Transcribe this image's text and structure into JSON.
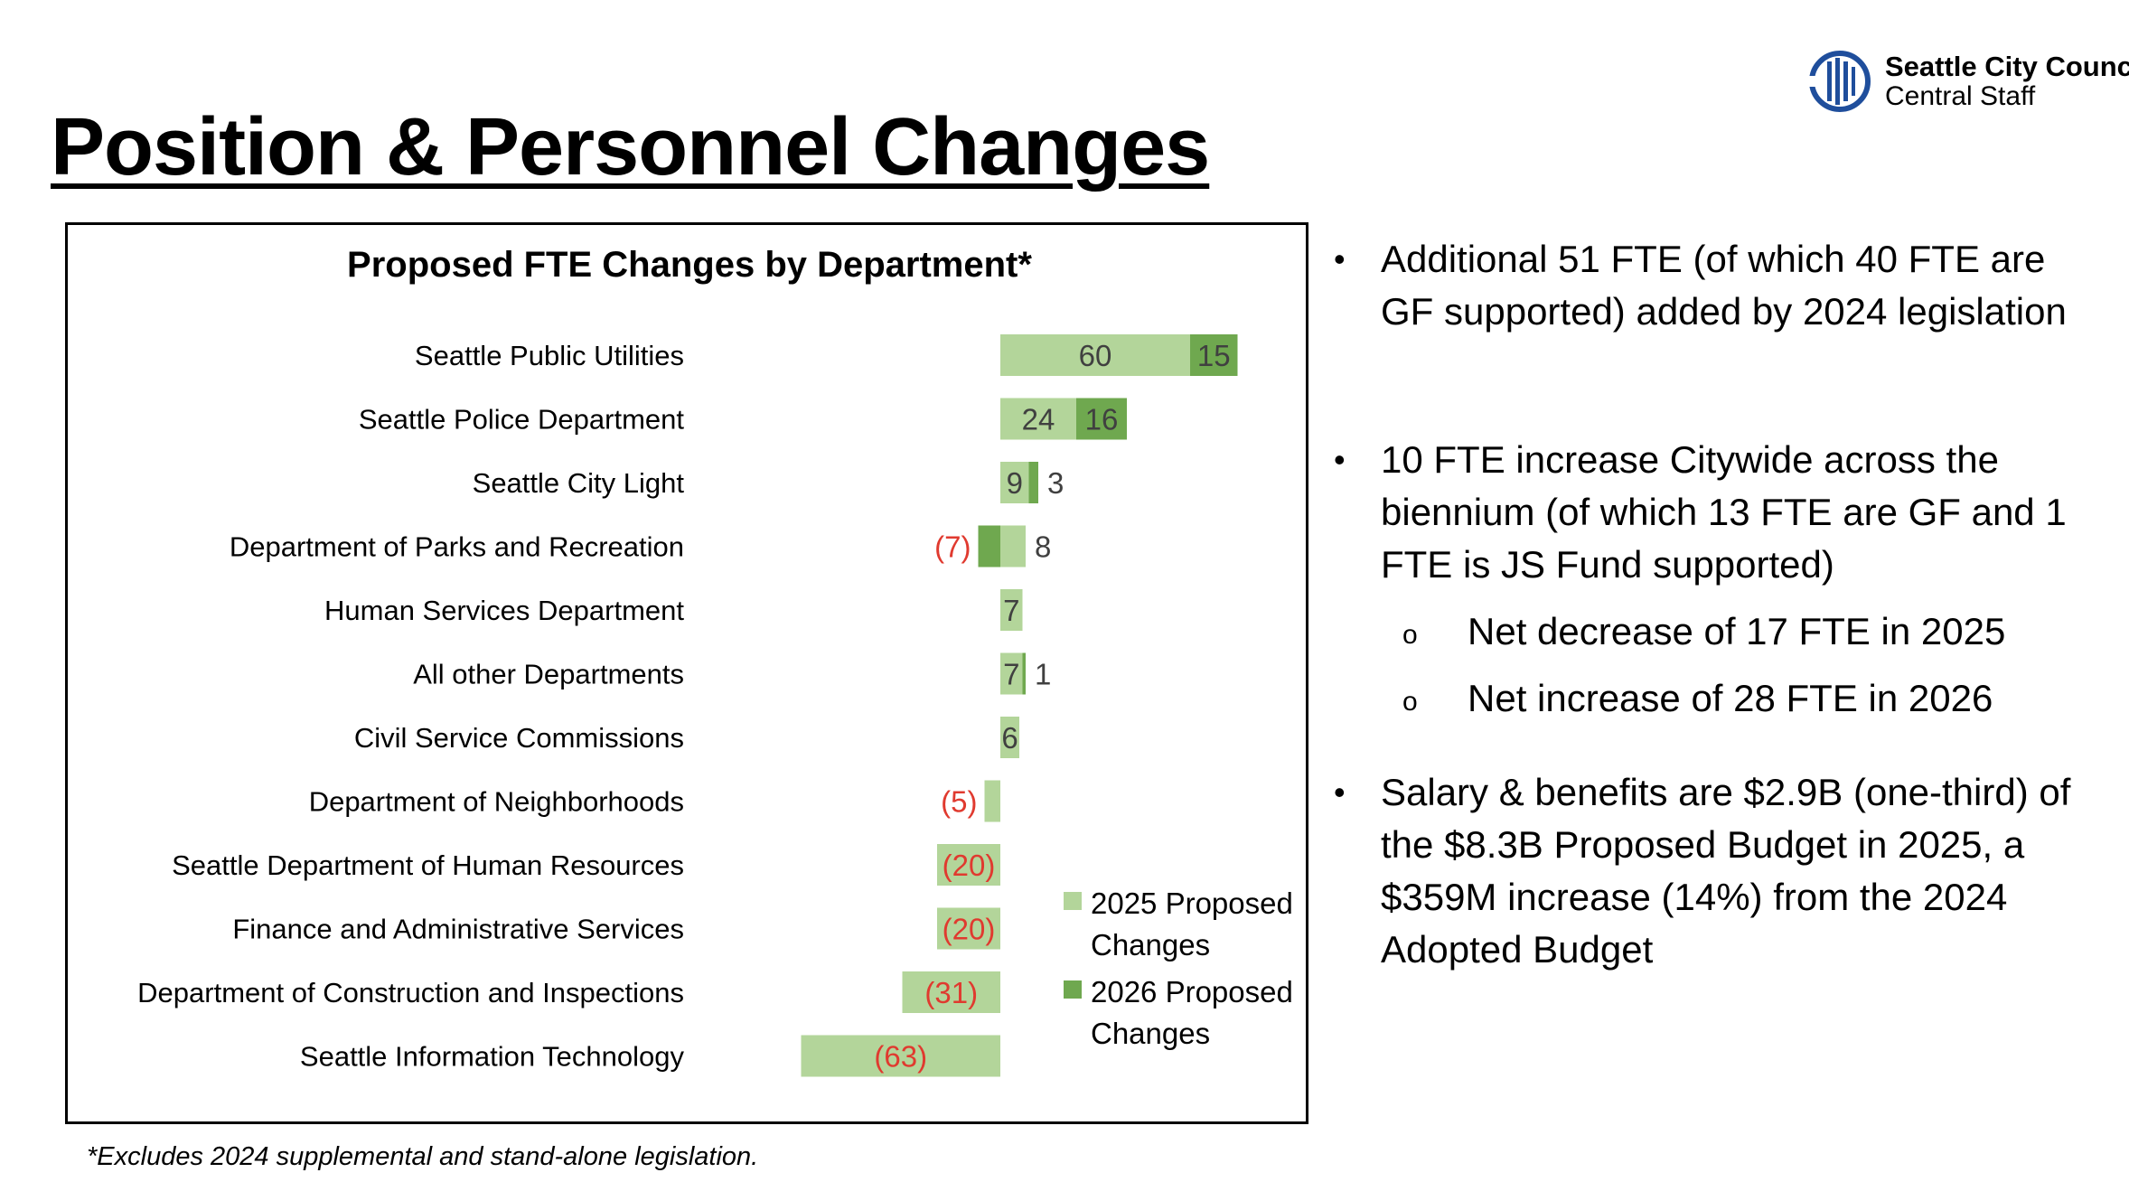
{
  "page": {
    "title": "Position & Personnel Changes",
    "footnote": "*Excludes 2024 supplemental and stand-alone legislation."
  },
  "logo": {
    "line1": "Seattle City Council",
    "line2": "Central Staff",
    "icon": "seattle-seal-icon",
    "color": "#1f4e9c"
  },
  "chart_data": {
    "type": "bar",
    "orientation": "horizontal",
    "stacked": true,
    "title": "Proposed FTE Changes by Department*",
    "categories": [
      "Seattle Public Utilities",
      "Seattle Police Department",
      "Seattle City Light",
      "Department of Parks and Recreation",
      "Human Services Department",
      "All other Departments",
      "Civil Service Commissions",
      "Department of Neighborhoods",
      "Seattle Department of Human Resources",
      "Finance and Administrative Services",
      "Department of Construction and Inspections",
      "Seattle Information Technology"
    ],
    "series": [
      {
        "name": "2025 Proposed Changes",
        "color": "#b3d59a",
        "values": [
          60,
          24,
          9,
          8,
          7,
          7,
          6,
          -5,
          -20,
          -20,
          -31,
          -63
        ]
      },
      {
        "name": "2026 Proposed Changes",
        "color": "#6fa84f",
        "values": [
          15,
          16,
          3,
          -7,
          0,
          1,
          0,
          0,
          0,
          0,
          0,
          0
        ]
      }
    ],
    "labels": [
      [
        "60",
        "15"
      ],
      [
        "24",
        "16"
      ],
      [
        "9",
        "3"
      ],
      [
        "8",
        "(7)"
      ],
      [
        "7",
        ""
      ],
      [
        "7",
        "1"
      ],
      [
        "6",
        ""
      ],
      [
        "(5)",
        ""
      ],
      [
        "(20)",
        ""
      ],
      [
        "(20)",
        ""
      ],
      [
        "(31)",
        ""
      ],
      [
        "(63)",
        ""
      ]
    ],
    "negative_label_color": "#e03a2f",
    "legend_position": "bottom-right",
    "grid": false,
    "xlim": [
      -63,
      75
    ]
  },
  "bullets": [
    {
      "level": 1,
      "text": "Additional 51 FTE (of which 40 FTE are GF supported) added by 2024 legislation"
    },
    {
      "level": 1,
      "text": "10 FTE increase Citywide across the biennium (of which 13 FTE are GF and 1 FTE is JS Fund supported)"
    },
    {
      "level": 2,
      "text": "Net decrease of 17 FTE in 2025"
    },
    {
      "level": 2,
      "text": "Net increase of 28 FTE in 2026"
    },
    {
      "level": 1,
      "text": "Salary & benefits are $2.9B (one-third) of the $8.3B Proposed Budget in 2025, a $359M increase (14%) from the 2024 Adopted Budget"
    }
  ],
  "bullet_glyphs": {
    "level1": "•",
    "level2": "o"
  }
}
